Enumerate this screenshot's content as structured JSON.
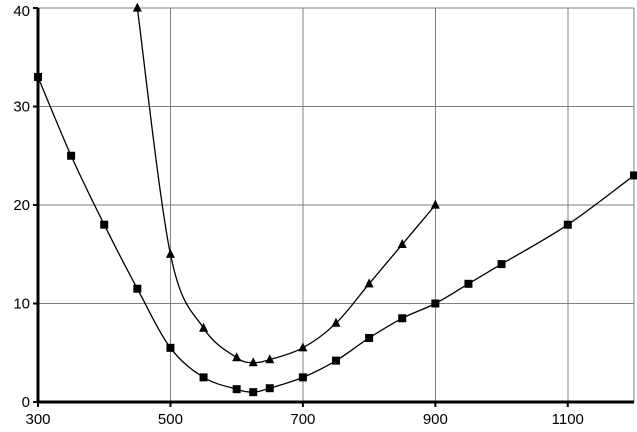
{
  "chart_data": {
    "type": "line",
    "title": "",
    "xlabel": "",
    "ylabel": "",
    "xlim": [
      300,
      1200
    ],
    "ylim": [
      0,
      40
    ],
    "x_ticks": [
      300,
      500,
      700,
      900,
      1100
    ],
    "y_ticks": [
      0,
      10,
      20,
      30,
      40
    ],
    "x_tick_labels": [
      "300",
      "500",
      "700",
      "900",
      "1100"
    ],
    "y_tick_labels": [
      "0",
      "10",
      "20",
      "30",
      "40"
    ],
    "grid": true,
    "legend": "none",
    "series": [
      {
        "marker": "square",
        "color": "#000000",
        "x": [
          300,
          350,
          400,
          450,
          500,
          550,
          600,
          625,
          650,
          700,
          750,
          800,
          850,
          900,
          950,
          1000,
          1100,
          1200
        ],
        "y": [
          33,
          25,
          18,
          11.5,
          5.5,
          2.5,
          1.3,
          1.0,
          1.4,
          2.5,
          4.2,
          6.5,
          8.5,
          10,
          12,
          14,
          18,
          23
        ]
      },
      {
        "marker": "triangle",
        "color": "#000000",
        "x": [
          450,
          500,
          550,
          600,
          625,
          650,
          700,
          750,
          800,
          850,
          900
        ],
        "y": [
          40,
          15,
          7.5,
          4.5,
          4.0,
          4.3,
          5.5,
          8,
          12,
          16,
          20
        ]
      }
    ]
  }
}
